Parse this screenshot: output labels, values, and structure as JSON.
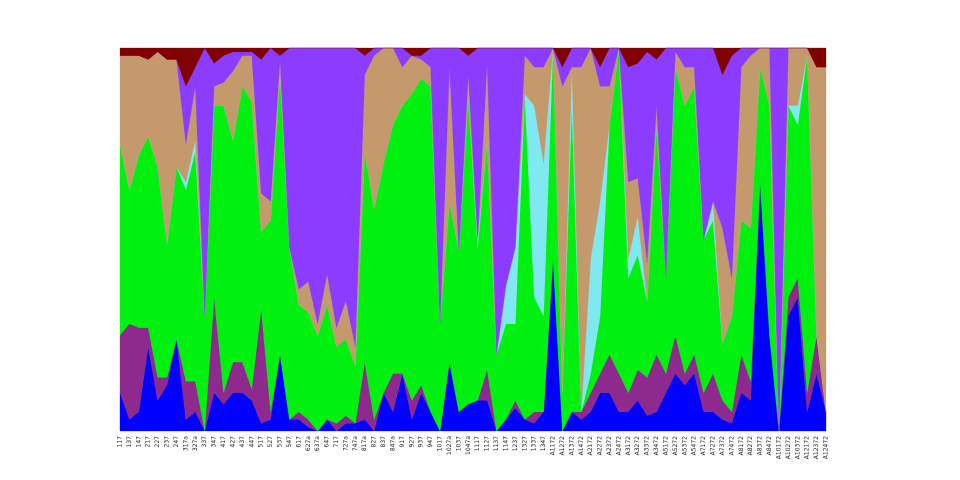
{
  "chart_data": {
    "type": "stacked_area",
    "categories": [
      "117",
      "137",
      "147",
      "217",
      "227",
      "237",
      "247",
      "317a",
      "327a",
      "337",
      "347",
      "417",
      "427",
      "437",
      "447",
      "517",
      "527",
      "537",
      "547",
      "617",
      "627a",
      "637a",
      "647",
      "717",
      "727a",
      "747a",
      "817a",
      "827",
      "837",
      "847a",
      "917",
      "927",
      "937",
      "947",
      "1017",
      "1027a",
      "1037",
      "1047a",
      "1117",
      "1127",
      "1137",
      "1147",
      "1237",
      "1327",
      "1337",
      "1347",
      "A1172",
      "A1272",
      "A1372",
      "A1472",
      "A2172",
      "A2272",
      "A2372",
      "A2472",
      "A3172",
      "A3272",
      "A3372",
      "A3472",
      "A5172",
      "A5272",
      "A5372",
      "A5472",
      "A7172",
      "A7272",
      "A7372",
      "A7472",
      "A8172",
      "A8272",
      "A8372",
      "A8472",
      "A10172",
      "A10272",
      "A10372",
      "A12172",
      "A12372",
      "A12472"
    ],
    "ylim": [
      0,
      100
    ],
    "series": [
      {
        "color": "#0000ff",
        "values": [
          10,
          3,
          5,
          22,
          8,
          12,
          24,
          3,
          5,
          0,
          10,
          7,
          10,
          10,
          8,
          2,
          3,
          20,
          3,
          3,
          1,
          0,
          3,
          0,
          2,
          2,
          3,
          0,
          10,
          5,
          15,
          3,
          10,
          5,
          0,
          18,
          5,
          7,
          8,
          8,
          0,
          3,
          6,
          3,
          2,
          5,
          45,
          0,
          5,
          3,
          5,
          10,
          10,
          5,
          5,
          8,
          4,
          5,
          10,
          15,
          12,
          15,
          5,
          5,
          3,
          2,
          10,
          8,
          65,
          25,
          0,
          30,
          35,
          5,
          15,
          5
        ]
      },
      {
        "color": "#8e2a8e",
        "values": [
          15,
          25,
          22,
          5,
          6,
          2,
          0,
          10,
          8,
          0,
          25,
          3,
          8,
          8,
          3,
          30,
          2,
          0,
          0,
          2,
          2,
          0,
          0,
          2,
          2,
          0,
          15,
          3,
          0,
          10,
          0,
          5,
          2,
          0,
          0,
          0,
          0,
          0,
          0,
          8,
          0,
          0,
          2,
          0,
          3,
          0,
          0,
          0,
          0,
          2,
          5,
          5,
          10,
          10,
          5,
          8,
          10,
          15,
          5,
          10,
          3,
          5,
          5,
          10,
          5,
          3,
          10,
          5,
          0,
          0,
          0,
          5,
          5,
          5,
          10,
          0
        ]
      },
      {
        "color": "#00f010",
        "values": [
          50,
          35,
          45,
          50,
          55,
          35,
          45,
          50,
          60,
          30,
          50,
          75,
          58,
          72,
          75,
          20,
          50,
          73,
          45,
          28,
          28,
          25,
          30,
          20,
          20,
          15,
          55,
          55,
          60,
          65,
          70,
          80,
          80,
          85,
          28,
          42,
          42,
          80,
          40,
          60,
          20,
          25,
          20,
          85,
          30,
          25,
          55,
          10,
          80,
          0,
          5,
          15,
          60,
          85,
          30,
          30,
          20,
          60,
          25,
          70,
          70,
          70,
          40,
          40,
          15,
          25,
          35,
          40,
          30,
          60,
          0,
          50,
          40,
          88,
          0,
          0
        ]
      },
      {
        "color": "#80e8f0",
        "values": [
          0,
          0,
          0,
          0,
          0,
          0,
          0,
          2,
          3,
          0,
          0,
          0,
          0,
          0,
          0,
          0,
          0,
          0,
          0,
          0,
          0,
          0,
          0,
          0,
          0,
          0,
          0,
          0,
          0,
          0,
          0,
          0,
          0,
          0,
          0,
          0,
          0,
          0,
          2,
          0,
          0,
          10,
          20,
          0,
          50,
          40,
          0,
          0,
          10,
          0,
          30,
          30,
          0,
          0,
          5,
          10,
          0,
          0,
          0,
          0,
          0,
          0,
          0,
          5,
          0,
          0,
          0,
          0,
          0,
          0,
          0,
          0,
          5,
          0,
          0,
          0
        ]
      },
      {
        "color": "#c49a6c",
        "values": [
          23,
          35,
          26,
          20,
          30,
          48,
          28,
          10,
          14,
          0,
          5,
          6,
          18,
          8,
          12,
          10,
          5,
          4,
          0,
          4,
          8,
          3,
          8,
          5,
          10,
          5,
          20,
          40,
          30,
          20,
          10,
          10,
          5,
          5,
          0,
          35,
          0,
          6,
          0,
          20,
          0,
          0,
          0,
          10,
          10,
          25,
          0,
          80,
          0,
          90,
          55,
          30,
          10,
          0,
          20,
          10,
          10,
          5,
          0,
          4,
          10,
          5,
          0,
          0,
          30,
          10,
          40,
          45,
          5,
          15,
          0,
          15,
          15,
          2,
          70,
          90
        ]
      },
      {
        "color": "#8c3cff",
        "values": [
          0,
          0,
          0,
          0,
          0,
          0,
          0,
          15,
          5,
          70,
          6,
          7,
          5,
          1,
          1,
          35,
          40,
          1,
          52,
          63,
          61,
          72,
          59,
          73,
          66,
          78,
          5,
          2,
          0,
          0,
          5,
          0,
          1,
          5,
          72,
          5,
          53,
          5,
          50,
          4,
          80,
          62,
          52,
          2,
          5,
          5,
          0,
          5,
          5,
          5,
          0,
          5,
          10,
          0,
          30,
          30,
          55,
          12,
          60,
          1,
          5,
          5,
          50,
          40,
          40,
          58,
          5,
          2,
          0,
          0,
          100,
          0,
          0,
          0,
          0,
          0
        ]
      },
      {
        "color": "#800000",
        "values": [
          2,
          2,
          2,
          3,
          1,
          3,
          3,
          10,
          5,
          0,
          4,
          2,
          1,
          1,
          1,
          3,
          0,
          2,
          0,
          0,
          0,
          0,
          0,
          0,
          0,
          0,
          2,
          0,
          0,
          0,
          0,
          2,
          2,
          0,
          0,
          0,
          0,
          2,
          0,
          0,
          0,
          0,
          0,
          0,
          0,
          0,
          0,
          5,
          0,
          0,
          0,
          5,
          0,
          0,
          5,
          4,
          1,
          3,
          0,
          0,
          0,
          0,
          0,
          0,
          7,
          2,
          0,
          0,
          0,
          0,
          0,
          0,
          0,
          0,
          5,
          5
        ]
      }
    ]
  }
}
